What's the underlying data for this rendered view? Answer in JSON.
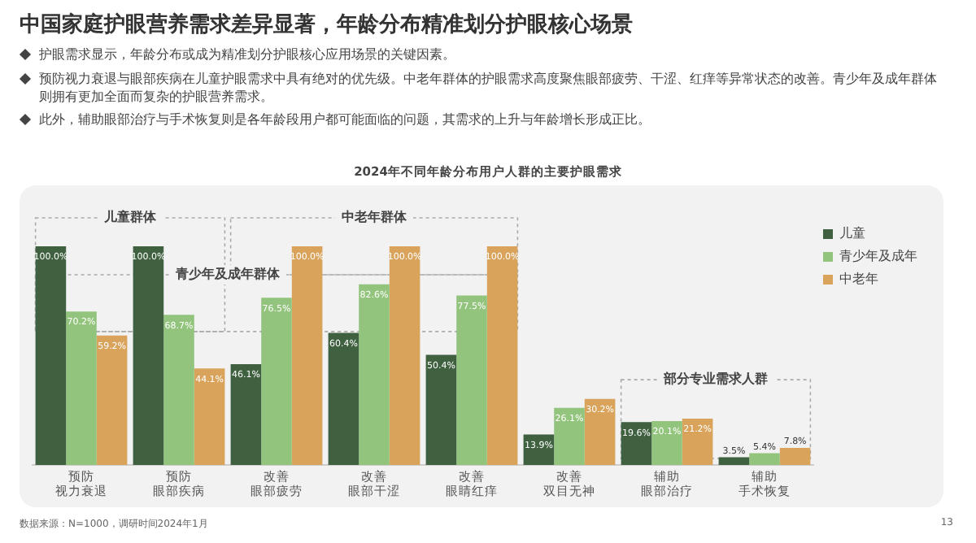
{
  "chart_data": {
    "type": "bar",
    "title": "中国家庭护眼营养需求差异显著，年龄分布精准划分护眼核心场景",
    "subtitle": "2024年不同年龄分布用户人群的主要护眼需求",
    "categories": [
      "预防视力衰退",
      "预防眼部疾病",
      "改善眼部疲劳",
      "改善眼部干涩",
      "改善眼睛红痒",
      "改善双目无神",
      "辅助眼部治疗",
      "辅助手术恢复"
    ],
    "series": [
      {
        "name": "儿童",
        "color": "#3f6140",
        "values": [
          100.0,
          100.0,
          46.1,
          60.4,
          50.4,
          13.9,
          19.6,
          3.5
        ],
        "value_labels": [
          "100.0%",
          "100.0%",
          "46.1%",
          "60.4%",
          "50.4%",
          "13.9%",
          "19.6%",
          "3.5%"
        ]
      },
      {
        "name": "青少年及成年",
        "color": "#93c47d",
        "values": [
          70.2,
          68.7,
          76.5,
          82.6,
          77.5,
          26.1,
          20.1,
          5.4
        ],
        "value_labels": [
          "70.2%",
          "68.7%",
          "76.5%",
          "82.6%",
          "77.5%",
          "26.1%",
          "20.1%",
          "5.4%"
        ]
      },
      {
        "name": "中老年",
        "color": "#d9a35c",
        "values": [
          59.2,
          44.1,
          100.0,
          100.0,
          100.0,
          30.2,
          21.2,
          7.8
        ],
        "value_labels": [
          "59.2%",
          "44.1%",
          "100.0%",
          "100.0%",
          "100.0%",
          "30.2%",
          "21.2%",
          "7.8%"
        ]
      }
    ],
    "legend": "top right",
    "grid": false,
    "annotations": [
      "护眼需求显示，年龄分布或成为精准划分护眼核心应用场景的关键因素。",
      "预防视力衰退与眼部疾病在儿童护眼需求中具有绝对的优先级。中老年群体的护眼需求高度聚焦眼部疲劳、干涩、红痒等异常状态的改善。青少年及成年群体则拥有更加全面而复杂的护眼营养需求。",
      "此外，辅助眼部治疗与手术恢复则是各年龄段用户都可能面临的问题，其需求的上升与年龄增长形成正比。",
      "儿童群体",
      "青少年及成年群体",
      "中老年群体",
      "部分专业需求人群",
      "数据来源：N=1000，调研时间2024年1月",
      "13"
    ]
  }
}
